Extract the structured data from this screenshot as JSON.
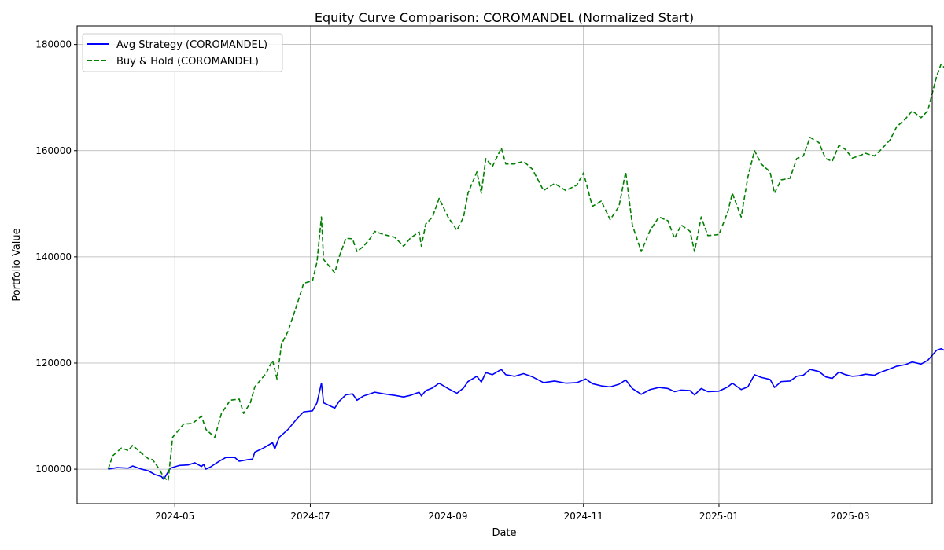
{
  "chart_data": {
    "type": "line",
    "title": "Equity Curve Comparison: COROMANDEL (Normalized Start)",
    "xlabel": "Date",
    "ylabel": "Portfolio Value",
    "x_ticks": [
      "2024-05",
      "2024-07",
      "2024-09",
      "2024-11",
      "2025-01",
      "2025-03"
    ],
    "y_ticks": [
      100000,
      120000,
      140000,
      160000,
      180000
    ],
    "xlim": [
      "2024-03-18",
      "2025-04-07"
    ],
    "ylim": [
      93500,
      183500
    ],
    "grid": true,
    "legend_position": "top-left",
    "series": [
      {
        "name": "Avg Strategy (COROMANDEL)",
        "color": "#0000ff",
        "style": "solid",
        "points": [
          [
            "2024-04-01",
            100000
          ],
          [
            "2024-04-05",
            100300
          ],
          [
            "2024-04-10",
            100200
          ],
          [
            "2024-04-12",
            100600
          ],
          [
            "2024-04-16",
            100000
          ],
          [
            "2024-04-19",
            99700
          ],
          [
            "2024-04-22",
            99000
          ],
          [
            "2024-04-25",
            98600
          ],
          [
            "2024-04-26",
            98100
          ],
          [
            "2024-04-29",
            100200
          ],
          [
            "2024-05-03",
            100700
          ],
          [
            "2024-05-07",
            100800
          ],
          [
            "2024-05-10",
            101200
          ],
          [
            "2024-05-13",
            100500
          ],
          [
            "2024-05-14",
            100900
          ],
          [
            "2024-05-15",
            100000
          ],
          [
            "2024-05-17",
            100400
          ],
          [
            "2024-05-21",
            101500
          ],
          [
            "2024-05-24",
            102200
          ],
          [
            "2024-05-28",
            102200
          ],
          [
            "2024-05-30",
            101500
          ],
          [
            "2024-06-03",
            101800
          ],
          [
            "2024-06-05",
            101900
          ],
          [
            "2024-06-06",
            103200
          ],
          [
            "2024-06-10",
            104000
          ],
          [
            "2024-06-14",
            105000
          ],
          [
            "2024-06-15",
            103800
          ],
          [
            "2024-06-17",
            106000
          ],
          [
            "2024-06-21",
            107500
          ],
          [
            "2024-06-25",
            109500
          ],
          [
            "2024-06-28",
            110800
          ],
          [
            "2024-07-02",
            111000
          ],
          [
            "2024-07-04",
            112500
          ],
          [
            "2024-07-06",
            116200
          ],
          [
            "2024-07-07",
            112500
          ],
          [
            "2024-07-12",
            111500
          ],
          [
            "2024-07-14",
            112800
          ],
          [
            "2024-07-17",
            114000
          ],
          [
            "2024-07-20",
            114200
          ],
          [
            "2024-07-22",
            113000
          ],
          [
            "2024-07-25",
            113800
          ],
          [
            "2024-07-28",
            114200
          ],
          [
            "2024-07-30",
            114500
          ],
          [
            "2024-08-03",
            114200
          ],
          [
            "2024-08-08",
            113900
          ],
          [
            "2024-08-12",
            113600
          ],
          [
            "2024-08-15",
            113900
          ],
          [
            "2024-08-19",
            114500
          ],
          [
            "2024-08-20",
            113800
          ],
          [
            "2024-08-22",
            114800
          ],
          [
            "2024-08-25",
            115300
          ],
          [
            "2024-08-28",
            116200
          ],
          [
            "2024-09-01",
            115200
          ],
          [
            "2024-09-05",
            114300
          ],
          [
            "2024-09-08",
            115300
          ],
          [
            "2024-09-10",
            116500
          ],
          [
            "2024-09-14",
            117500
          ],
          [
            "2024-09-16",
            116400
          ],
          [
            "2024-09-18",
            118200
          ],
          [
            "2024-09-21",
            117800
          ],
          [
            "2024-09-25",
            118800
          ],
          [
            "2024-09-27",
            117800
          ],
          [
            "2024-10-01",
            117500
          ],
          [
            "2024-10-05",
            118000
          ],
          [
            "2024-10-09",
            117400
          ],
          [
            "2024-10-14",
            116300
          ],
          [
            "2024-10-19",
            116600
          ],
          [
            "2024-10-24",
            116200
          ],
          [
            "2024-10-29",
            116300
          ],
          [
            "2024-11-02",
            117000
          ],
          [
            "2024-11-05",
            116100
          ],
          [
            "2024-11-09",
            115700
          ],
          [
            "2024-11-13",
            115500
          ],
          [
            "2024-11-17",
            116000
          ],
          [
            "2024-11-20",
            116800
          ],
          [
            "2024-11-23",
            115200
          ],
          [
            "2024-11-27",
            114100
          ],
          [
            "2024-12-01",
            115000
          ],
          [
            "2024-12-05",
            115400
          ],
          [
            "2024-12-09",
            115200
          ],
          [
            "2024-12-12",
            114600
          ],
          [
            "2024-12-15",
            114900
          ],
          [
            "2024-12-19",
            114800
          ],
          [
            "2024-12-21",
            114000
          ],
          [
            "2024-12-24",
            115200
          ],
          [
            "2024-12-27",
            114600
          ],
          [
            "2025-01-01",
            114700
          ],
          [
            "2025-01-05",
            115500
          ],
          [
            "2025-01-07",
            116200
          ],
          [
            "2025-01-11",
            115000
          ],
          [
            "2025-01-14",
            115500
          ],
          [
            "2025-01-17",
            117800
          ],
          [
            "2025-01-20",
            117300
          ],
          [
            "2025-01-24",
            116900
          ],
          [
            "2025-01-26",
            115400
          ],
          [
            "2025-01-29",
            116500
          ],
          [
            "2025-02-02",
            116600
          ],
          [
            "2025-02-05",
            117500
          ],
          [
            "2025-02-08",
            117700
          ],
          [
            "2025-02-11",
            118800
          ],
          [
            "2025-02-15",
            118400
          ],
          [
            "2025-02-18",
            117400
          ],
          [
            "2025-02-21",
            117100
          ],
          [
            "2025-02-24",
            118300
          ],
          [
            "2025-02-27",
            117800
          ],
          [
            "2025-03-02",
            117500
          ],
          [
            "2025-03-05",
            117600
          ],
          [
            "2025-03-08",
            117900
          ],
          [
            "2025-03-12",
            117700
          ],
          [
            "2025-03-15",
            118300
          ],
          [
            "2025-03-19",
            118900
          ],
          [
            "2025-03-22",
            119400
          ],
          [
            "2025-03-26",
            119700
          ],
          [
            "2025-03-29",
            120200
          ],
          [
            "2025-04-02",
            119800
          ],
          [
            "2025-04-05",
            120500
          ],
          [
            "2025-04-09",
            122400
          ],
          [
            "2025-04-11",
            122700
          ],
          [
            "2025-04-15",
            121900
          ],
          [
            "2025-04-17",
            122500
          ]
        ]
      },
      {
        "name": "Buy & Hold (COROMANDEL)",
        "color": "#008000",
        "style": "dashed",
        "points": [
          [
            "2024-04-01",
            100000
          ],
          [
            "2024-04-03",
            102500
          ],
          [
            "2024-04-07",
            104000
          ],
          [
            "2024-04-10",
            103500
          ],
          [
            "2024-04-12",
            104500
          ],
          [
            "2024-04-16",
            103000
          ],
          [
            "2024-04-19",
            102000
          ],
          [
            "2024-04-21",
            101800
          ],
          [
            "2024-04-24",
            100000
          ],
          [
            "2024-04-26",
            98500
          ],
          [
            "2024-04-28",
            97800
          ],
          [
            "2024-04-30",
            106000
          ],
          [
            "2024-05-05",
            108500
          ],
          [
            "2024-05-09",
            108600
          ],
          [
            "2024-05-13",
            110000
          ],
          [
            "2024-05-15",
            107500
          ],
          [
            "2024-05-19",
            106000
          ],
          [
            "2024-05-22",
            110500
          ],
          [
            "2024-05-26",
            113000
          ],
          [
            "2024-05-30",
            113200
          ],
          [
            "2024-06-01",
            110500
          ],
          [
            "2024-06-04",
            112500
          ],
          [
            "2024-06-06",
            115500
          ],
          [
            "2024-06-11",
            118000
          ],
          [
            "2024-06-14",
            120500
          ],
          [
            "2024-06-16",
            117000
          ],
          [
            "2024-06-18",
            123500
          ],
          [
            "2024-06-21",
            126000
          ],
          [
            "2024-06-25",
            131000
          ],
          [
            "2024-06-28",
            135000
          ],
          [
            "2024-07-02",
            135500
          ],
          [
            "2024-07-04",
            139000
          ],
          [
            "2024-07-06",
            147500
          ],
          [
            "2024-07-07",
            139500
          ],
          [
            "2024-07-12",
            137000
          ],
          [
            "2024-07-14",
            140000
          ],
          [
            "2024-07-17",
            143500
          ],
          [
            "2024-07-20",
            143400
          ],
          [
            "2024-07-22",
            141000
          ],
          [
            "2024-07-25",
            142000
          ],
          [
            "2024-07-28",
            143500
          ],
          [
            "2024-07-30",
            144800
          ],
          [
            "2024-08-03",
            144200
          ],
          [
            "2024-08-08",
            143700
          ],
          [
            "2024-08-12",
            142000
          ],
          [
            "2024-08-15",
            143500
          ],
          [
            "2024-08-19",
            144700
          ],
          [
            "2024-08-20",
            142000
          ],
          [
            "2024-08-22",
            146200
          ],
          [
            "2024-08-25",
            147500
          ],
          [
            "2024-08-28",
            151000
          ],
          [
            "2024-09-01",
            147500
          ],
          [
            "2024-09-05",
            145000
          ],
          [
            "2024-09-08",
            147500
          ],
          [
            "2024-09-10",
            152000
          ],
          [
            "2024-09-14",
            156000
          ],
          [
            "2024-09-16",
            152000
          ],
          [
            "2024-09-18",
            158500
          ],
          [
            "2024-09-21",
            157000
          ],
          [
            "2024-09-25",
            160500
          ],
          [
            "2024-09-27",
            157500
          ],
          [
            "2024-10-01",
            157500
          ],
          [
            "2024-10-05",
            158000
          ],
          [
            "2024-10-09",
            156500
          ],
          [
            "2024-10-14",
            152500
          ],
          [
            "2024-10-19",
            153800
          ],
          [
            "2024-10-24",
            152500
          ],
          [
            "2024-10-29",
            153500
          ],
          [
            "2024-11-01",
            155800
          ],
          [
            "2024-11-05",
            149500
          ],
          [
            "2024-11-09",
            150500
          ],
          [
            "2024-11-13",
            147000
          ],
          [
            "2024-11-17",
            149500
          ],
          [
            "2024-11-20",
            156000
          ],
          [
            "2024-11-23",
            146000
          ],
          [
            "2024-11-27",
            141000
          ],
          [
            "2024-12-01",
            145000
          ],
          [
            "2024-12-05",
            147500
          ],
          [
            "2024-12-09",
            146800
          ],
          [
            "2024-12-12",
            143500
          ],
          [
            "2024-12-15",
            146000
          ],
          [
            "2024-12-19",
            144800
          ],
          [
            "2024-12-21",
            141000
          ],
          [
            "2024-12-24",
            147500
          ],
          [
            "2024-12-27",
            144000
          ],
          [
            "2025-01-01",
            144200
          ],
          [
            "2025-01-05",
            148500
          ],
          [
            "2025-01-07",
            152000
          ],
          [
            "2025-01-11",
            147500
          ],
          [
            "2025-01-14",
            155000
          ],
          [
            "2025-01-17",
            160000
          ],
          [
            "2025-01-20",
            157500
          ],
          [
            "2025-01-24",
            156000
          ],
          [
            "2025-01-26",
            152000
          ],
          [
            "2025-01-29",
            154500
          ],
          [
            "2025-02-02",
            154800
          ],
          [
            "2025-02-05",
            158500
          ],
          [
            "2025-02-08",
            159000
          ],
          [
            "2025-02-11",
            162500
          ],
          [
            "2025-02-15",
            161500
          ],
          [
            "2025-02-18",
            158500
          ],
          [
            "2025-02-21",
            158000
          ],
          [
            "2025-02-24",
            161000
          ],
          [
            "2025-02-27",
            160200
          ],
          [
            "2025-03-02",
            158600
          ],
          [
            "2025-03-05",
            159000
          ],
          [
            "2025-03-08",
            159500
          ],
          [
            "2025-03-12",
            159000
          ],
          [
            "2025-03-15",
            160200
          ],
          [
            "2025-03-19",
            162000
          ],
          [
            "2025-03-22",
            164500
          ],
          [
            "2025-03-26",
            166000
          ],
          [
            "2025-03-29",
            167500
          ],
          [
            "2025-04-02",
            166200
          ],
          [
            "2025-04-05",
            167500
          ],
          [
            "2025-04-09",
            174000
          ],
          [
            "2025-04-11",
            176300
          ],
          [
            "2025-04-15",
            174500
          ],
          [
            "2025-04-17",
            175800
          ]
        ]
      }
    ]
  }
}
